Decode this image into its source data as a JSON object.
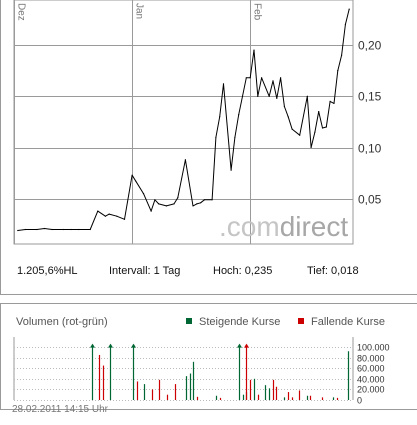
{
  "price_chart": {
    "months": [
      "Dez",
      "Jan",
      "Feb"
    ],
    "y_ticks": [
      "0,20",
      "0,15",
      "0,10",
      "0,05"
    ],
    "watermark_prefix": ".com",
    "watermark_suffix": "direct",
    "chart_data": {
      "type": "line",
      "title": "",
      "xlabel": "",
      "ylabel": "",
      "ylim": [
        0.0,
        0.235
      ],
      "x_range": [
        "2010-12-01",
        "2011-02-28"
      ],
      "x_month_starts": [
        "2010-12-01",
        "2011-01-01",
        "2011-02-01"
      ],
      "x": [
        "2010-12-02",
        "2010-12-04",
        "2010-12-07",
        "2010-12-09",
        "2010-12-11",
        "2010-12-14",
        "2010-12-16",
        "2010-12-18",
        "2010-12-21",
        "2010-12-23",
        "2010-12-25",
        "2010-12-26",
        "2010-12-28",
        "2010-12-30",
        "2011-01-01",
        "2011-01-02",
        "2011-01-04",
        "2011-01-06",
        "2011-01-07",
        "2011-01-08",
        "2011-01-10",
        "2011-01-12",
        "2011-01-13",
        "2011-01-15",
        "2011-01-17",
        "2011-01-18",
        "2011-01-19",
        "2011-01-20",
        "2011-01-22",
        "2011-01-23",
        "2011-01-24",
        "2011-01-25",
        "2011-01-27",
        "2011-01-28",
        "2011-01-29",
        "2011-01-30",
        "2011-01-31",
        "2011-02-01",
        "2011-02-02",
        "2011-02-03",
        "2011-02-04",
        "2011-02-06",
        "2011-02-07",
        "2011-02-08",
        "2011-02-09",
        "2011-02-10",
        "2011-02-11",
        "2011-02-12",
        "2011-02-14",
        "2011-02-16",
        "2011-02-17",
        "2011-02-18",
        "2011-02-19",
        "2011-02-20",
        "2011-02-21",
        "2011-02-22",
        "2011-02-23",
        "2011-02-24",
        "2011-02-25",
        "2011-02-26",
        "2011-02-27"
      ],
      "series": [
        {
          "name": "",
          "values": [
            0.019,
            0.02,
            0.02,
            0.021,
            0.02,
            0.02,
            0.02,
            0.02,
            0.02,
            0.038,
            0.033,
            0.035,
            0.033,
            0.03,
            0.073,
            0.067,
            0.055,
            0.038,
            0.049,
            0.045,
            0.043,
            0.045,
            0.051,
            0.088,
            0.043,
            0.045,
            0.046,
            0.049,
            0.049,
            0.11,
            0.13,
            0.162,
            0.078,
            0.11,
            0.132,
            0.15,
            0.168,
            0.168,
            0.195,
            0.15,
            0.168,
            0.15,
            0.165,
            0.148,
            0.168,
            0.14,
            0.13,
            0.118,
            0.112,
            0.15,
            0.1,
            0.115,
            0.135,
            0.119,
            0.12,
            0.145,
            0.143,
            0.175,
            0.19,
            0.22,
            0.235
          ]
        }
      ]
    },
    "info": {
      "change": "1.205,6%HL",
      "interval": "Intervall: 1 Tag",
      "high": "Hoch:  0,235",
      "low": "Tief:  0,018"
    }
  },
  "volume_chart": {
    "title": "Volumen (rot-grün)",
    "legend_up": "Steigende Kurse",
    "legend_down": "Fallende Kurse",
    "up_color": "#006633",
    "down_color": "#cc0000",
    "y_ticks": [
      "100.000",
      "80.000",
      "60.000",
      "40.000",
      "20.000",
      "0"
    ],
    "chart_data": {
      "type": "bar",
      "title": "Volumen (rot-grün)",
      "ylim": [
        0,
        110000
      ],
      "x_range": [
        "2010-12-01",
        "2011-02-28"
      ],
      "series": [
        {
          "name": "Steigende Kurse",
          "x": [
            "2010-12-21",
            "2010-12-26",
            "2011-01-01",
            "2011-01-04",
            "2011-01-15",
            "2011-01-16",
            "2011-01-17",
            "2011-01-23",
            "2011-01-29",
            "2011-01-30",
            "2011-01-31",
            "2011-02-02",
            "2011-02-05",
            "2011-02-06",
            "2011-02-10",
            "2011-02-16",
            "2011-02-23",
            "2011-02-27"
          ],
          "values": [
            112000,
            115000,
            112000,
            30000,
            45000,
            50000,
            72000,
            8000,
            112000,
            10000,
            15000,
            40000,
            28000,
            22000,
            5000,
            8000,
            5000,
            92000
          ]
        },
        {
          "name": "Fallende Kurse",
          "x": [
            "2010-12-23",
            "2010-12-24",
            "2011-01-02",
            "2011-01-06",
            "2011-01-08",
            "2011-01-10",
            "2011-01-12",
            "2011-01-18",
            "2011-01-24",
            "2011-01-31",
            "2011-02-01",
            "2011-02-03",
            "2011-02-07",
            "2011-02-08",
            "2011-02-11",
            "2011-02-12",
            "2011-02-14",
            "2011-02-17",
            "2011-02-20",
            "2011-02-24"
          ],
          "values": [
            85000,
            65000,
            35000,
            20000,
            38000,
            10000,
            30000,
            6000,
            4000,
            112000,
            38000,
            10000,
            38000,
            25000,
            15000,
            5000,
            18000,
            8000,
            5000,
            4000
          ]
        }
      ]
    },
    "timestamp": "28.02.2011 14:15 Uhr"
  }
}
